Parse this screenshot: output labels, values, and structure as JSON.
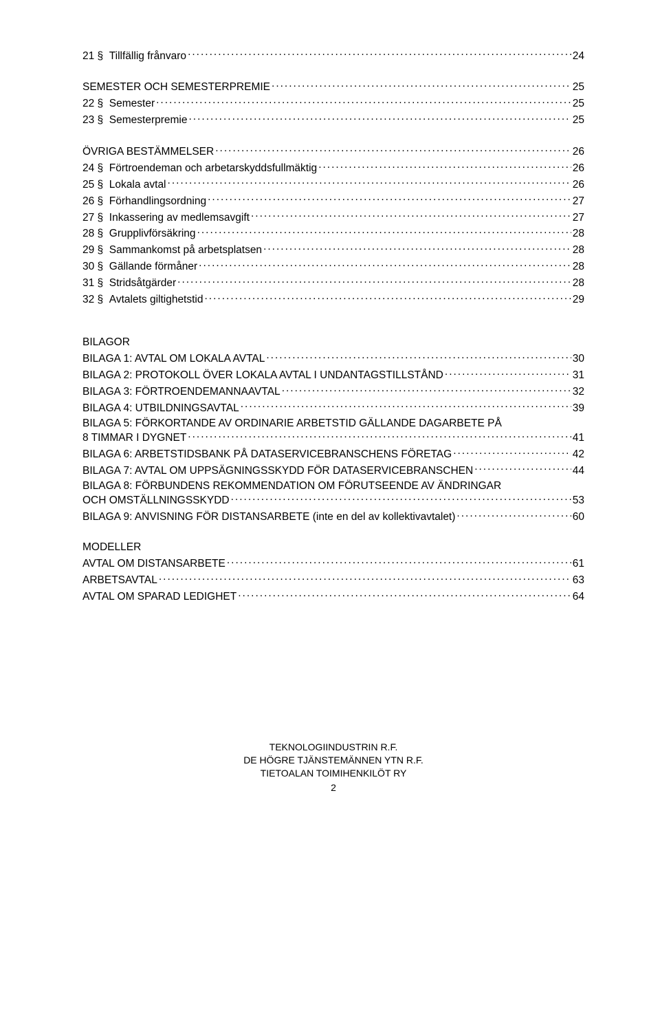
{
  "typography": {
    "font_family": "Arial",
    "font_size_pt": 12,
    "color": "#000000",
    "background": "#ffffff",
    "line_height": 1.25
  },
  "toc": {
    "groups": [
      {
        "heading": null,
        "entries": [
          {
            "num": "21",
            "label": "Tillfällig frånvaro",
            "page": "24"
          }
        ]
      },
      {
        "heading": {
          "label": "SEMESTER OCH SEMESTERPREMIE",
          "page": "25"
        },
        "entries": [
          {
            "num": "22",
            "label": "Semester",
            "page": "25"
          },
          {
            "num": "23",
            "label": "Semesterpremie",
            "page": "25"
          }
        ]
      },
      {
        "heading": {
          "label": "ÖVRIGA BESTÄMMELSER",
          "page": "26"
        },
        "entries": [
          {
            "num": "24",
            "label": "Förtroendeman och arbetarskyddsfullmäktig",
            "page": "26"
          },
          {
            "num": "25",
            "label": "Lokala avtal",
            "page": "26"
          },
          {
            "num": "26",
            "label": "Förhandlingsordning",
            "page": "27"
          },
          {
            "num": "27",
            "label": "Inkassering av medlemsavgift",
            "page": "27"
          },
          {
            "num": "28",
            "label": "Grupplivförsäkring",
            "page": "28"
          },
          {
            "num": "29",
            "label": "Sammankomst på arbetsplatsen",
            "page": "28"
          },
          {
            "num": "30",
            "label": "Gällande förmåner",
            "page": "28"
          },
          {
            "num": "31",
            "label": "Stridsåtgärder",
            "page": "28"
          },
          {
            "num": "32",
            "label": "Avtalets giltighetstid",
            "page": "29"
          }
        ]
      }
    ],
    "bilagor_heading": "BILAGOR",
    "bilagor": [
      {
        "label": "BILAGA 1: AVTAL OM LOKALA AVTAL",
        "page": "30"
      },
      {
        "label": "BILAGA 2: PROTOKOLL ÖVER LOKALA AVTAL I UNDANTAGSTILLSTÅND",
        "page": "31"
      },
      {
        "label": "BILAGA 3: FÖRTROENDEMANNAAVTAL",
        "page": "32"
      },
      {
        "label": "BILAGA 4: UTBILDNINGSAVTAL",
        "page": "39"
      },
      {
        "label_line1": "BILAGA 5: FÖRKORTANDE AV ORDINARIE ARBETSTID GÄLLANDE DAGARBETE PÅ",
        "label_line2": "8 TIMMAR I DYGNET",
        "page": "41",
        "wrap": true
      },
      {
        "label": "BILAGA 6: ARBETSTIDSBANK PÅ DATASERVICEBRANSCHENS FÖRETAG",
        "page": "42"
      },
      {
        "label": "BILAGA 7: AVTAL OM UPPSÄGNINGSSKYDD FÖR DATASERVICEBRANSCHEN",
        "page": "44"
      },
      {
        "label_line1": "BILAGA 8: FÖRBUNDENS REKOMMENDATION OM FÖRUTSEENDE AV ÄNDRINGAR",
        "label_line2": "OCH OMSTÄLLNINGSSKYDD",
        "page": "53",
        "wrap": true
      },
      {
        "label": "BILAGA 9: ANVISNING FÖR DISTANSARBETE (inte en del av kollektivavtalet)",
        "page": "60"
      }
    ],
    "modeller_heading": "MODELLER",
    "modeller": [
      {
        "label": "AVTAL OM DISTANSARBETE",
        "page": "61"
      },
      {
        "label": "ARBETSAVTAL",
        "page": "63"
      },
      {
        "label": "AVTAL OM SPARAD LEDIGHET",
        "page": "64"
      }
    ]
  },
  "footer": {
    "line1": "TEKNOLOGIINDUSTRIN R.F.",
    "line2": "DE HÖGRE TJÄNSTEMÄNNEN YTN R.F.",
    "line3": "TIETOALAN TOIMIHENKILÖT RY",
    "page_number": "2"
  }
}
